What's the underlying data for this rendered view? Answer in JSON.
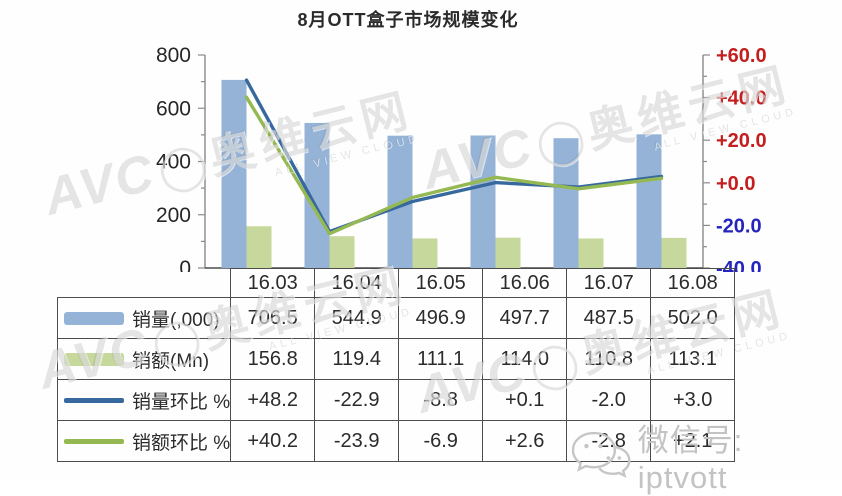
{
  "title": "8月OTT盒子市场规模变化",
  "chart_data": {
    "type": "combo-bar-line",
    "title": "8月OTT盒子市场规模变化",
    "categories": [
      "16.03",
      "16.04",
      "16.05",
      "16.06",
      "16.07",
      "16.08"
    ],
    "series": [
      {
        "name": "销量(,000)",
        "kind": "bar",
        "axis": "left",
        "color": "#95B3D7",
        "values": [
          706.5,
          544.9,
          496.9,
          497.7,
          487.5,
          502.0
        ]
      },
      {
        "name": "销额(Mn)",
        "kind": "bar",
        "axis": "left",
        "color": "#C6D89B",
        "values": [
          156.8,
          119.4,
          111.1,
          114.0,
          110.8,
          113.1
        ]
      },
      {
        "name": "销量环比 %",
        "kind": "line",
        "axis": "right",
        "color": "#38699E",
        "values": [
          48.2,
          -22.9,
          -8.8,
          0.1,
          -2.0,
          3.0
        ]
      },
      {
        "name": "销额环比 %",
        "kind": "line",
        "axis": "right",
        "color": "#95B952",
        "values": [
          40.2,
          -23.9,
          -6.9,
          2.6,
          -2.8,
          2.1
        ]
      }
    ],
    "left_axis": {
      "min": 0,
      "max": 800,
      "tick_values": [
        800,
        600,
        400,
        200,
        0
      ],
      "tick_labels": [
        "800",
        "600",
        "400",
        "200",
        "0"
      ],
      "minor_step": 100,
      "label_color": "#262626"
    },
    "right_axis": {
      "min": -40,
      "max": 60,
      "tick_values": [
        60,
        40,
        20,
        0,
        -20,
        -40
      ],
      "tick_labels": [
        "+60.0",
        "+40.0",
        "+20.0",
        "+0.0",
        "-20.0",
        "-40.0"
      ],
      "minor_step": 10,
      "positive_color": "#C41E1E",
      "negative_color": "#2525BE"
    },
    "gridlines": false,
    "legend_position": "table-left-column"
  },
  "table": {
    "columns": [
      "16.03",
      "16.04",
      "16.05",
      "16.06",
      "16.07",
      "16.08"
    ],
    "rows": [
      {
        "label": "销量(,000)",
        "swatch": "bar",
        "color": "#95B3D7",
        "values": [
          "706.5",
          "544.9",
          "496.9",
          "497.7",
          "487.5",
          "502.0"
        ]
      },
      {
        "label": "销额(Mn)",
        "swatch": "bar",
        "color": "#C6D89B",
        "values": [
          "156.8",
          "119.4",
          "111.1",
          "114.0",
          "110.8",
          "113.1"
        ]
      },
      {
        "label": "销量环比 %",
        "swatch": "line",
        "color": "#38699E",
        "values": [
          "+48.2",
          "-22.9",
          "-8.8",
          "+0.1",
          "-2.0",
          "+3.0"
        ]
      },
      {
        "label": "销额环比 %",
        "swatch": "line",
        "color": "#95B952",
        "values": [
          "+40.2",
          "-23.9",
          "-6.9",
          "+2.6",
          "-2.8",
          "+2.1"
        ]
      }
    ]
  },
  "watermark": {
    "logo_text": "AVC",
    "ring": "◯",
    "cn_text": "奥维云网",
    "sub_text": "ALL VIEW CLOUD"
  },
  "footer": {
    "icon": "wechat-icon",
    "label": "微信号: iptvott"
  }
}
